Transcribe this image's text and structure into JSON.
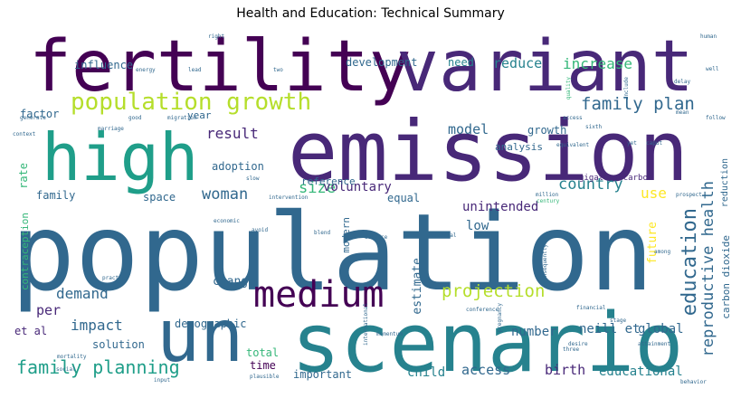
{
  "title": "Health and Education: Technical Summary",
  "colors": {
    "purple_dark": "#440154",
    "purple": "#482878",
    "indigo": "#3e4a89",
    "blue": "#31688e",
    "teal_blue": "#26828e",
    "teal": "#1f9e89",
    "green": "#35b779",
    "light_green": "#6ece58",
    "lime": "#b5de2b",
    "yellow": "#fde725"
  },
  "words": {
    "population": "population",
    "emission": "emission",
    "fertility": "fertility",
    "variant": "variant",
    "scenario": "scenario",
    "un": "un",
    "high": "high",
    "medium": "medium",
    "population_growth": "population growth",
    "family_planning": "family planning",
    "family_plan": "family plan",
    "education": "education",
    "reproductive_health": "reproductive health",
    "projection": "projection",
    "increase": "increase",
    "reduce": "reduce",
    "development": "development",
    "need": "need",
    "influence": "influence",
    "model": "model",
    "growth": "growth",
    "result": "result",
    "woman": "woman",
    "country": "country",
    "size": "size",
    "use": "use",
    "voluntary": "voluntary",
    "unintended": "unintended",
    "demand": "demand",
    "impact": "impact",
    "per": "per",
    "et_al": "et al",
    "access": "access",
    "birth": "birth",
    "child": "child",
    "educational": "educational",
    "neill_et": "neill et",
    "global": "global",
    "number": "number",
    "future": "future",
    "low": "low",
    "estimate": "estimate",
    "change": "change",
    "demographic": "demographic",
    "solution": "solution",
    "total": "total",
    "time": "time",
    "important": "important",
    "factor": "factor",
    "year": "year",
    "analysis": "analysis",
    "adoption": "adoption",
    "rate": "rate",
    "family": "family",
    "space": "space",
    "reference": "reference",
    "equal": "equal",
    "modern": "modern",
    "contraception": "contraception",
    "carbon_dioxide": "carbon dioxide",
    "reduction": "reduction",
    "gigatons_carbon": "gigatons carbon",
    "right": "right",
    "energy": "energy",
    "lead": "lead",
    "two": "two",
    "quality": "quality",
    "include": "include",
    "delay": "delay",
    "human": "human",
    "well": "well",
    "generate": "generate",
    "good": "good",
    "migration": "migration",
    "mean": "mean",
    "access_small": "access",
    "follow": "follow",
    "context": "context",
    "marriage": "marriage",
    "equivalent": "equivalent",
    "sixth": "sixth",
    "caput": "caput",
    "yet": "yet",
    "slow": "slow",
    "intervention": "intervention",
    "million": "million",
    "prospect": "prospect",
    "century": "century",
    "blend": "blend",
    "economic": "economic",
    "avoid": "avoid",
    "service": "service",
    "universal": "universal",
    "consequently": "consequently",
    "among": "among",
    "practice": "practice",
    "pregnancy": "pregnancy",
    "financial": "financial",
    "conference": "conference",
    "momentum": "momentum",
    "international": "international",
    "desire": "desire",
    "three": "three",
    "attainment": "attainment",
    "plausible": "plausible",
    "social": "social",
    "mortality": "mortality",
    "input": "input",
    "behavior": "behavior",
    "stage": "stage"
  }
}
